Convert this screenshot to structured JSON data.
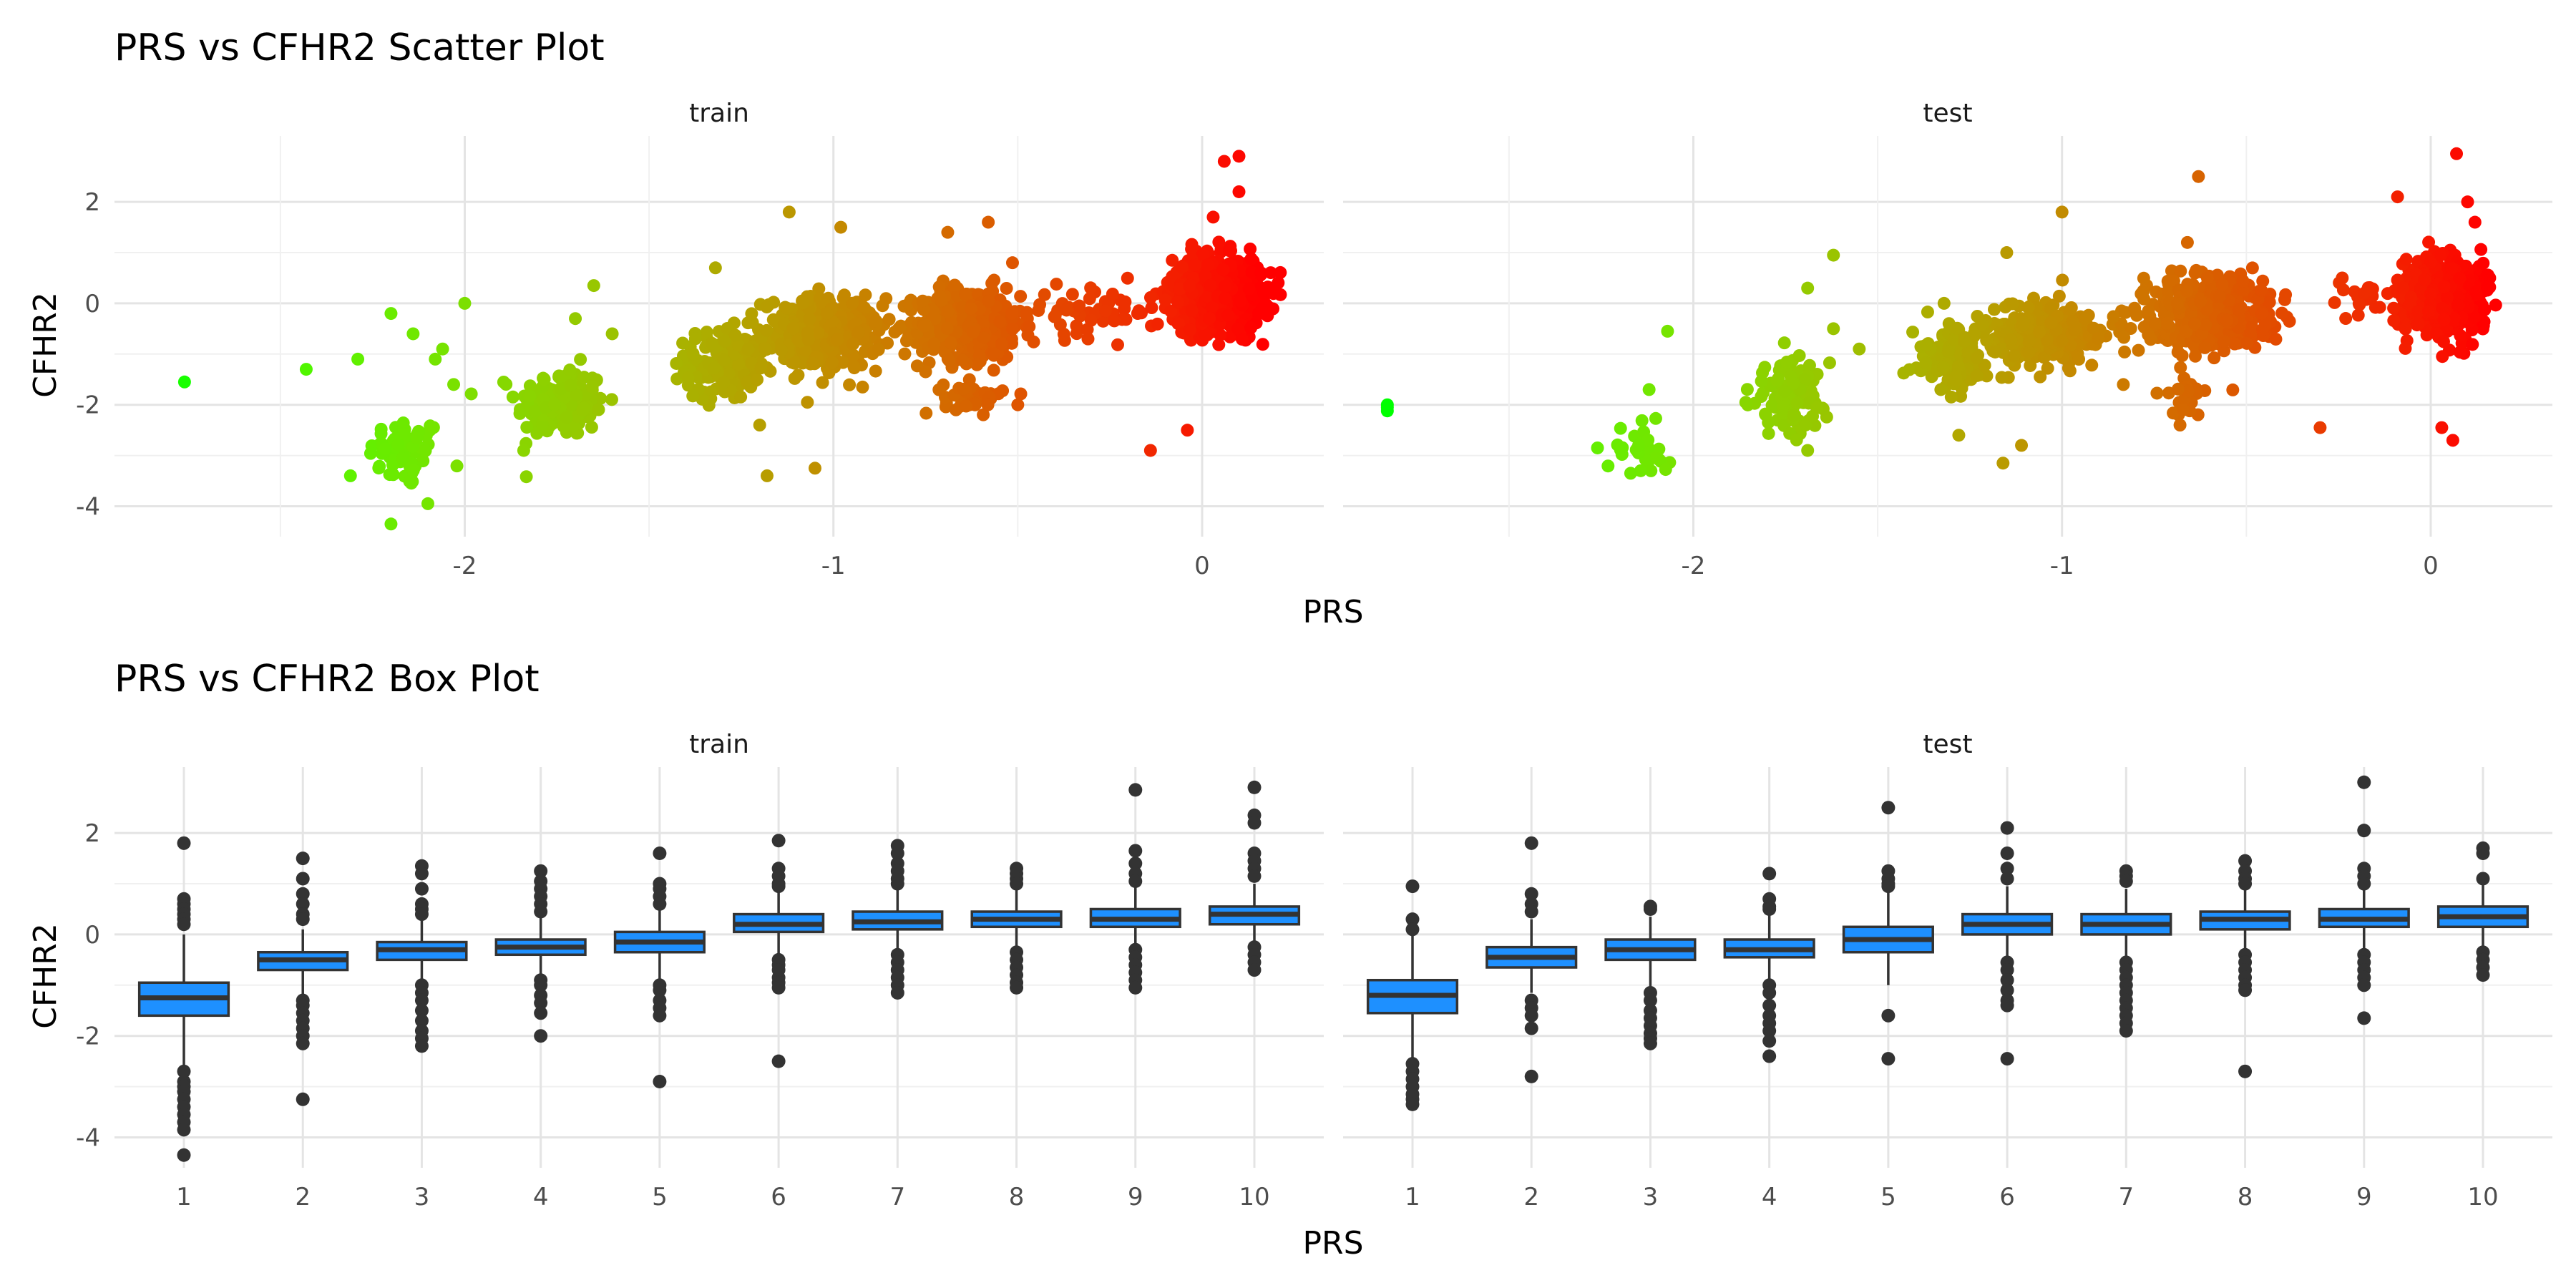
{
  "chart_data": [
    {
      "type": "scatter",
      "title": "PRS vs CFHR2 Scatter Plot",
      "xlabel": "PRS",
      "ylabel": "CFHR2",
      "facets": [
        "train",
        "test"
      ],
      "xlim": [
        -2.95,
        0.33
      ],
      "ylim": [
        -4.6,
        3.3
      ],
      "x_ticks": [
        -2,
        -1,
        0
      ],
      "y_ticks": [
        -4,
        -2,
        0,
        2
      ],
      "grid": true,
      "color_scale": {
        "low": "#00ff00",
        "high": "#ff0000",
        "maps": "PRS"
      },
      "point_color_note": "colour runs from green at the lowest PRS to red at PRS near 0",
      "clusters": {
        "train": [
          {
            "x": -2.16,
            "y": -2.95,
            "sx": 0.05,
            "sy": 0.35,
            "n": 60
          },
          {
            "x": -1.74,
            "y": -1.95,
            "sx": 0.06,
            "sy": 0.35,
            "n": 170
          },
          {
            "x": -1.3,
            "y": -1.2,
            "sx": 0.05,
            "sy": 0.35,
            "n": 150
          },
          {
            "x": -1.03,
            "y": -0.6,
            "sx": 0.08,
            "sy": 0.35,
            "n": 380
          },
          {
            "x": -0.63,
            "y": -0.4,
            "sx": 0.07,
            "sy": 0.35,
            "n": 480
          },
          {
            "x": -0.62,
            "y": -1.85,
            "sx": 0.04,
            "sy": 0.15,
            "n": 45
          },
          {
            "x": -0.3,
            "y": -0.15,
            "sx": 0.09,
            "sy": 0.25,
            "n": 50
          },
          {
            "x": 0.04,
            "y": 0.2,
            "sx": 0.06,
            "sy": 0.35,
            "n": 900
          }
        ],
        "test": [
          {
            "x": -2.13,
            "y": -2.85,
            "sx": 0.05,
            "sy": 0.3,
            "n": 30
          },
          {
            "x": -1.74,
            "y": -1.85,
            "sx": 0.05,
            "sy": 0.35,
            "n": 120
          },
          {
            "x": -1.3,
            "y": -1.1,
            "sx": 0.05,
            "sy": 0.3,
            "n": 130
          },
          {
            "x": -1.05,
            "y": -0.6,
            "sx": 0.08,
            "sy": 0.3,
            "n": 260
          },
          {
            "x": -0.6,
            "y": -0.2,
            "sx": 0.09,
            "sy": 0.35,
            "n": 420
          },
          {
            "x": -0.65,
            "y": -1.8,
            "sx": 0.03,
            "sy": 0.2,
            "n": 25
          },
          {
            "x": -0.2,
            "y": 0.1,
            "sx": 0.05,
            "sy": 0.2,
            "n": 20
          },
          {
            "x": 0.03,
            "y": 0.15,
            "sx": 0.05,
            "sy": 0.35,
            "n": 700
          }
        ]
      },
      "points": {
        "train": [
          [
            -2.76,
            -1.55
          ],
          [
            -2.43,
            -1.3
          ],
          [
            -2.31,
            -3.4
          ],
          [
            -2.29,
            -1.1
          ],
          [
            -2.2,
            -0.2
          ],
          [
            -2.14,
            -0.6
          ],
          [
            -2.08,
            -1.1
          ],
          [
            -2.06,
            -0.9
          ],
          [
            -2.03,
            -1.6
          ],
          [
            -2.0,
            0.0
          ],
          [
            -2.1,
            -3.95
          ],
          [
            -2.2,
            -4.35
          ],
          [
            -1.84,
            -2.9
          ],
          [
            -1.65,
            0.35
          ],
          [
            -1.6,
            -0.6
          ],
          [
            -1.7,
            -0.3
          ],
          [
            -1.32,
            0.7
          ],
          [
            -1.18,
            -3.4
          ],
          [
            -1.05,
            -3.25
          ],
          [
            -1.2,
            -2.4
          ],
          [
            -1.12,
            1.8
          ],
          [
            -0.98,
            1.5
          ],
          [
            -0.75,
            -1.35
          ],
          [
            -0.58,
            1.6
          ],
          [
            -0.69,
            1.4
          ],
          [
            -0.5,
            -2.0
          ],
          [
            -0.14,
            -2.9
          ],
          [
            -0.04,
            -2.5
          ],
          [
            0.06,
            2.8
          ],
          [
            0.1,
            2.9
          ],
          [
            0.1,
            2.2
          ],
          [
            0.03,
            1.7
          ],
          [
            0.16,
            0.6
          ]
        ],
        "test": [
          [
            -2.83,
            -2.05
          ],
          [
            -2.83,
            -2.12
          ],
          [
            -2.83,
            -2.0
          ],
          [
            -2.26,
            -2.85
          ],
          [
            -2.1,
            -3.05
          ],
          [
            -2.17,
            -3.35
          ],
          [
            -2.07,
            -0.55
          ],
          [
            -2.12,
            -1.7
          ],
          [
            -1.62,
            0.95
          ],
          [
            -1.69,
            0.3
          ],
          [
            -1.69,
            -2.9
          ],
          [
            -1.55,
            -0.9
          ],
          [
            -1.62,
            -0.5
          ],
          [
            -1.28,
            -2.6
          ],
          [
            -1.11,
            -2.8
          ],
          [
            -1.16,
            -3.15
          ],
          [
            -1.0,
            1.8
          ],
          [
            -1.15,
            1.0
          ],
          [
            -1.32,
            0.0
          ],
          [
            -0.63,
            2.5
          ],
          [
            -0.68,
            -2.4
          ],
          [
            -0.66,
            1.2
          ],
          [
            -0.3,
            -2.45
          ],
          [
            -0.24,
            0.5
          ],
          [
            -0.18,
            0.2
          ],
          [
            0.03,
            -2.45
          ],
          [
            0.06,
            -2.7
          ],
          [
            0.1,
            2.0
          ],
          [
            0.12,
            1.6
          ],
          [
            -0.09,
            2.1
          ],
          [
            0.07,
            2.95
          ],
          [
            0.16,
            0.5
          ]
        ]
      }
    },
    {
      "type": "box",
      "title": "PRS vs CFHR2 Box Plot",
      "xlabel": "PRS",
      "ylabel": "CFHR2",
      "facets": [
        "train",
        "test"
      ],
      "categories": [
        "1",
        "2",
        "3",
        "4",
        "5",
        "6",
        "7",
        "8",
        "9",
        "10"
      ],
      "ylim": [
        -4.6,
        3.3
      ],
      "y_ticks": [
        -4,
        -2,
        0,
        2
      ],
      "grid": true,
      "box_color": "#1e90ff",
      "outline_color": "#333333",
      "boxes": {
        "train": [
          {
            "q1": -1.6,
            "median": -1.25,
            "q3": -0.95,
            "lo": -2.6,
            "hi": 0.0,
            "out": [
              1.8,
              0.7,
              0.6,
              0.5,
              0.4,
              0.3,
              0.2,
              -2.7,
              -2.9,
              -3.0,
              -3.1,
              -3.25,
              -3.4,
              -3.55,
              -3.7,
              -3.85,
              -4.35
            ]
          },
          {
            "q1": -0.7,
            "median": -0.5,
            "q3": -0.35,
            "lo": -1.2,
            "hi": 0.1,
            "out": [
              1.5,
              1.1,
              0.8,
              0.6,
              0.4,
              0.3,
              -1.3,
              -1.4,
              -1.55,
              -1.7,
              -1.85,
              -2.0,
              -2.15,
              -3.25
            ]
          },
          {
            "q1": -0.5,
            "median": -0.3,
            "q3": -0.15,
            "lo": -0.95,
            "hi": 0.3,
            "out": [
              1.35,
              1.2,
              0.9,
              0.6,
              0.5,
              0.4,
              -1.0,
              -1.15,
              -1.3,
              -1.5,
              -1.7,
              -1.9,
              -2.05,
              -2.2
            ]
          },
          {
            "q1": -0.4,
            "median": -0.25,
            "q3": -0.1,
            "lo": -0.85,
            "hi": 0.4,
            "out": [
              1.25,
              1.05,
              0.9,
              0.75,
              0.6,
              0.45,
              -0.9,
              -1.0,
              -1.2,
              -1.35,
              -1.55,
              -2.0
            ]
          },
          {
            "q1": -0.35,
            "median": -0.15,
            "q3": 0.05,
            "lo": -0.95,
            "hi": 0.55,
            "out": [
              1.6,
              1.0,
              0.9,
              0.75,
              0.6,
              -1.0,
              -1.1,
              -1.3,
              -1.45,
              -1.6,
              -2.9
            ]
          },
          {
            "q1": 0.05,
            "median": 0.2,
            "q3": 0.4,
            "lo": -0.45,
            "hi": 0.9,
            "out": [
              1.85,
              1.3,
              1.15,
              1.0,
              0.95,
              -0.5,
              -0.6,
              -0.7,
              -0.85,
              -0.95,
              -1.05,
              -2.5
            ]
          },
          {
            "q1": 0.1,
            "median": 0.25,
            "q3": 0.45,
            "lo": -0.35,
            "hi": 0.9,
            "out": [
              1.75,
              1.6,
              1.4,
              1.25,
              1.1,
              1.0,
              -0.4,
              -0.55,
              -0.7,
              -0.85,
              -1.0,
              -1.15
            ]
          },
          {
            "q1": 0.15,
            "median": 0.3,
            "q3": 0.45,
            "lo": -0.3,
            "hi": 0.9,
            "out": [
              1.3,
              1.2,
              1.1,
              1.0,
              -0.35,
              -0.5,
              -0.65,
              -0.8,
              -0.95,
              -1.05
            ]
          },
          {
            "q1": 0.15,
            "median": 0.3,
            "q3": 0.5,
            "lo": -0.25,
            "hi": 0.95,
            "out": [
              2.85,
              1.65,
              1.4,
              1.2,
              1.05,
              -0.3,
              -0.45,
              -0.6,
              -0.75,
              -0.9,
              -1.05
            ]
          },
          {
            "q1": 0.2,
            "median": 0.4,
            "q3": 0.55,
            "lo": -0.2,
            "hi": 1.0,
            "out": [
              2.9,
              2.35,
              2.2,
              1.6,
              1.45,
              1.3,
              1.15,
              -0.25,
              -0.4,
              -0.55,
              -0.7
            ]
          }
        ],
        "test": [
          {
            "q1": -1.55,
            "median": -1.2,
            "q3": -0.9,
            "lo": -2.45,
            "hi": 0.0,
            "out": [
              0.95,
              0.3,
              0.1,
              -2.55,
              -2.7,
              -2.85,
              -3.0,
              -3.15,
              -3.25,
              -3.35
            ]
          },
          {
            "q1": -0.65,
            "median": -0.45,
            "q3": -0.25,
            "lo": -1.15,
            "hi": 0.3,
            "out": [
              1.8,
              0.8,
              0.6,
              0.45,
              -1.3,
              -1.45,
              -1.6,
              -1.85,
              -2.8
            ]
          },
          {
            "q1": -0.5,
            "median": -0.3,
            "q3": -0.1,
            "lo": -1.05,
            "hi": 0.35,
            "out": [
              0.55,
              0.5,
              -1.15,
              -1.3,
              -1.5,
              -1.65,
              -1.8,
              -1.95,
              -2.05,
              -2.15
            ]
          },
          {
            "q1": -0.45,
            "median": -0.3,
            "q3": -0.1,
            "lo": -0.95,
            "hi": 0.4,
            "out": [
              1.2,
              0.7,
              0.55,
              0.5,
              -1.0,
              -1.15,
              -1.4,
              -1.6,
              -1.75,
              -1.9,
              -2.1,
              -2.4
            ]
          },
          {
            "q1": -0.35,
            "median": -0.1,
            "q3": 0.15,
            "lo": -1.0,
            "hi": 0.85,
            "out": [
              2.5,
              1.25,
              1.1,
              1.0,
              0.95,
              -1.6,
              -2.45
            ]
          },
          {
            "q1": 0.0,
            "median": 0.2,
            "q3": 0.4,
            "lo": -0.5,
            "hi": 0.95,
            "out": [
              2.1,
              1.6,
              1.3,
              1.1,
              -0.55,
              -0.7,
              -0.9,
              -1.1,
              -1.3,
              -1.4,
              -2.45
            ]
          },
          {
            "q1": 0.0,
            "median": 0.2,
            "q3": 0.4,
            "lo": -0.5,
            "hi": 0.9,
            "out": [
              1.25,
              1.15,
              1.05,
              -0.55,
              -0.7,
              -0.85,
              -1.0,
              -1.15,
              -1.3,
              -1.45,
              -1.6,
              -1.75,
              -1.9
            ]
          },
          {
            "q1": 0.1,
            "median": 0.3,
            "q3": 0.45,
            "lo": -0.35,
            "hi": 0.9,
            "out": [
              1.45,
              1.25,
              1.1,
              1.0,
              -0.4,
              -0.55,
              -0.7,
              -0.85,
              -1.0,
              -1.1,
              -2.7
            ]
          },
          {
            "q1": 0.15,
            "median": 0.3,
            "q3": 0.5,
            "lo": -0.3,
            "hi": 0.95,
            "out": [
              3.0,
              2.05,
              1.3,
              1.15,
              1.0,
              -0.4,
              -0.55,
              -0.7,
              -0.85,
              -1.0,
              -1.65
            ]
          },
          {
            "q1": 0.15,
            "median": 0.35,
            "q3": 0.55,
            "lo": -0.3,
            "hi": 1.0,
            "out": [
              1.7,
              1.6,
              1.1,
              -0.35,
              -0.5,
              -0.65,
              -0.8
            ]
          }
        ]
      }
    }
  ]
}
